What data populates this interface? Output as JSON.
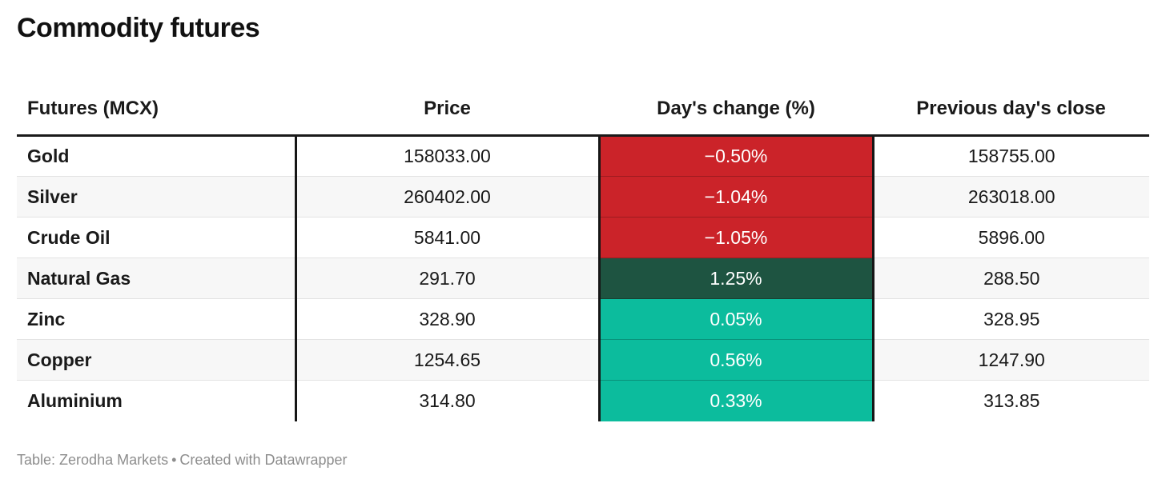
{
  "title": "Commodity futures",
  "table": {
    "columns": [
      "Futures (MCX)",
      "Price",
      "Day's change (%)",
      "Previous day's close"
    ],
    "rows": [
      {
        "name": "Gold",
        "price": "158033.00",
        "change": "−0.50%",
        "prev_close": "158755.00",
        "trend": "down"
      },
      {
        "name": "Silver",
        "price": "260402.00",
        "change": "−1.04%",
        "prev_close": "263018.00",
        "trend": "down"
      },
      {
        "name": "Crude Oil",
        "price": "5841.00",
        "change": "−1.05%",
        "prev_close": "5896.00",
        "trend": "down"
      },
      {
        "name": "Natural Gas",
        "price": "291.70",
        "change": "1.25%",
        "prev_close": "288.50",
        "trend": "up_strong"
      },
      {
        "name": "Zinc",
        "price": "328.90",
        "change": "0.05%",
        "prev_close": "328.95",
        "trend": "up"
      },
      {
        "name": "Copper",
        "price": "1254.65",
        "change": "0.56%",
        "prev_close": "1247.90",
        "trend": "up"
      },
      {
        "name": "Aluminium",
        "price": "314.80",
        "change": "0.33%",
        "prev_close": "313.85",
        "trend": "up"
      }
    ]
  },
  "colors": {
    "down": "#cb2329",
    "up_strong": "#1e5441",
    "up": "#0cbc9d",
    "stripe": "#f7f7f7",
    "border": "#161616",
    "footer_text": "#8d8d8d"
  },
  "footer": {
    "source_label": "Table: ",
    "source_name": "Zerodha Markets",
    "separator": "•",
    "credit": "Created with Datawrapper"
  },
  "chart_data": {
    "type": "table",
    "title": "Commodity futures",
    "columns": [
      "Futures (MCX)",
      "Price",
      "Day's change (%)",
      "Previous day's close"
    ],
    "rows": [
      [
        "Gold",
        158033.0,
        -0.5,
        158755.0
      ],
      [
        "Silver",
        260402.0,
        -1.04,
        263018.0
      ],
      [
        "Crude Oil",
        5841.0,
        -1.05,
        5896.0
      ],
      [
        "Natural Gas",
        291.7,
        1.25,
        288.5
      ],
      [
        "Zinc",
        328.9,
        0.05,
        328.95
      ],
      [
        "Copper",
        1254.65,
        0.56,
        1247.9
      ],
      [
        "Aluminium",
        314.8,
        0.33,
        313.85
      ]
    ],
    "notes": "Day's change cells are color-coded: red = negative, dark green = strong positive (1.25%), teal = positive",
    "source": "Zerodha Markets",
    "tool": "Datawrapper"
  }
}
